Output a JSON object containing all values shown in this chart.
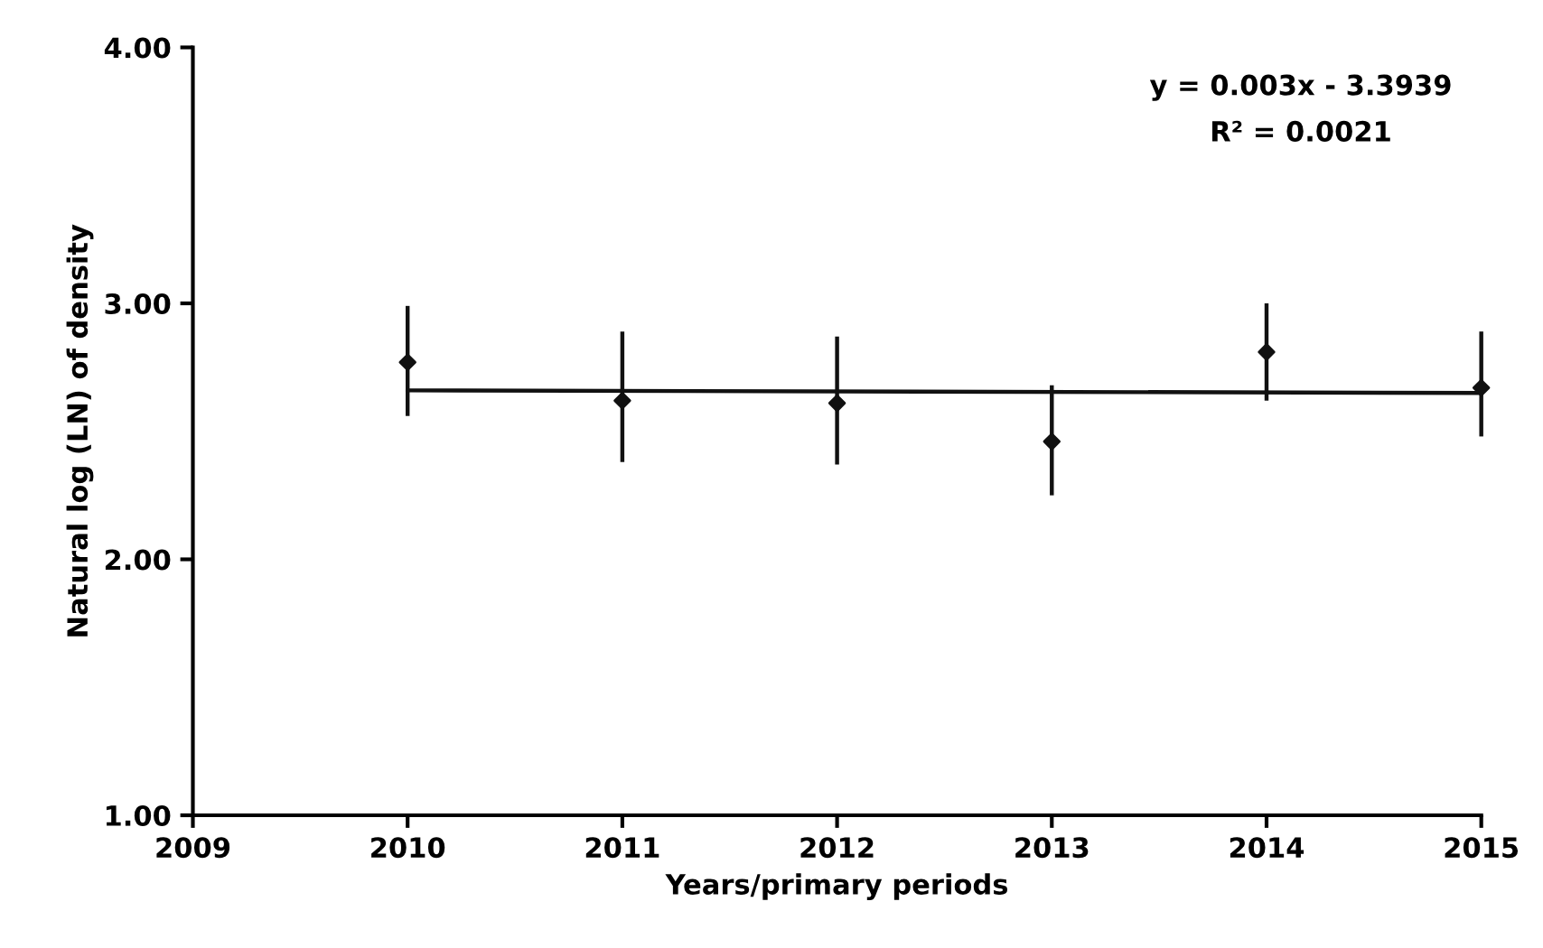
{
  "chart_data": {
    "type": "scatter",
    "xlabel": "Years/primary periods",
    "ylabel": "Natural log (LN) of density",
    "x": [
      2010,
      2011,
      2012,
      2013,
      2014,
      2015
    ],
    "series": [
      {
        "marker": "diamond",
        "color": "#111111",
        "values": [
          2.77,
          2.62,
          2.61,
          2.46,
          2.81,
          2.67
        ],
        "errors": [
          [
            2.56,
            2.99
          ],
          [
            2.38,
            2.89
          ],
          [
            2.37,
            2.87
          ],
          [
            2.25,
            2.68
          ],
          [
            2.62,
            3.0
          ],
          [
            2.48,
            2.89
          ]
        ]
      },
      {
        "type": "line",
        "marker": "none",
        "color": "#111111",
        "x": [
          2010,
          2015
        ],
        "values": [
          2.66,
          2.65
        ]
      }
    ],
    "xlim": [
      2009,
      2015
    ],
    "xticks": [
      2009,
      2010,
      2011,
      2012,
      2013,
      2014,
      2015
    ],
    "ylim": [
      1.0,
      4.0
    ],
    "yticks": [
      {
        "value": 1,
        "label": "1.00"
      },
      {
        "value": 2,
        "label": "2.00"
      },
      {
        "value": 3,
        "label": "3.00"
      },
      {
        "value": 4,
        "label": "4.00"
      }
    ],
    "grid": false,
    "legend": false,
    "annotations": [
      "y = 0.003x - 3.3939",
      "R² = 0.0021"
    ]
  }
}
